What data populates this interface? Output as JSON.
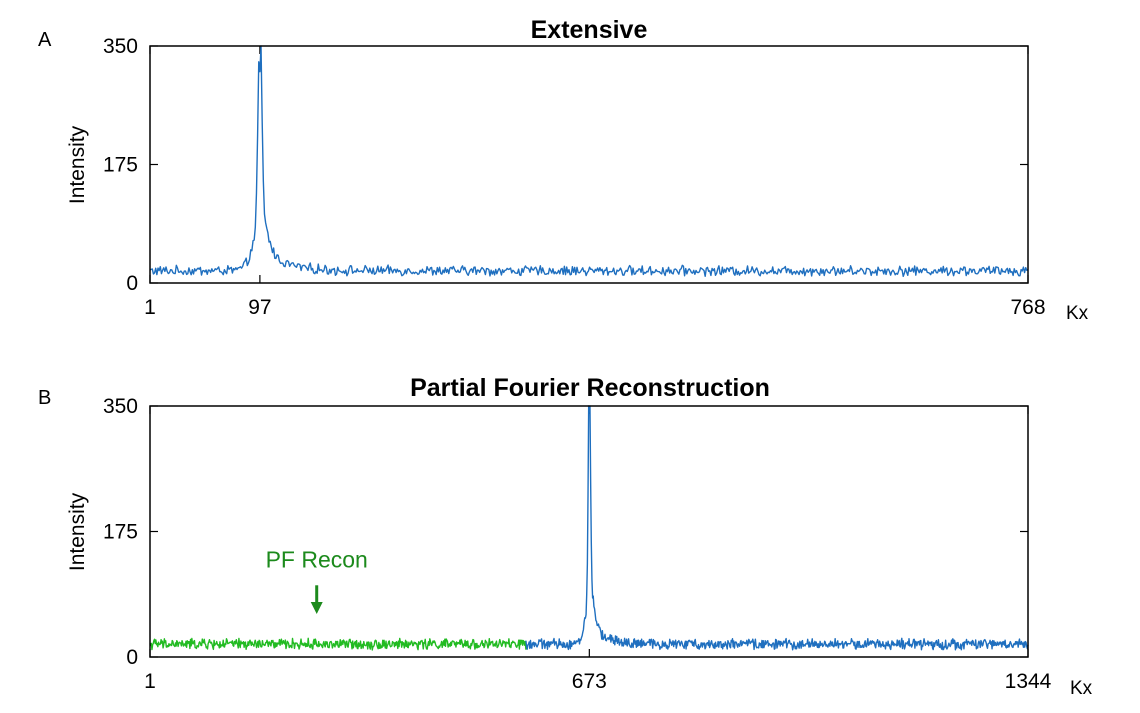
{
  "colors": {
    "blue_series": "#1f6fbf",
    "green_series": "#22bb22",
    "annotation": "#1c8a1c",
    "axis": "#000000"
  },
  "chart_data": [
    {
      "type": "line",
      "panel_letter": "A",
      "title": "Extensive",
      "ylabel": "Intensity",
      "xlabel": "Kx",
      "xlim": [
        1,
        768
      ],
      "ylim": [
        0,
        350
      ],
      "xticks": [
        {
          "value": 1,
          "label": "1"
        },
        {
          "value": 97,
          "label": "97"
        },
        {
          "value": 768,
          "label": "768"
        }
      ],
      "yticks": [
        {
          "value": 0,
          "label": "0"
        },
        {
          "value": 175,
          "label": "175"
        },
        {
          "value": 350,
          "label": "350"
        }
      ],
      "grid": false,
      "series": [
        {
          "color": "#1f6fbf",
          "x_range": [
            1,
            768
          ],
          "noise_base": 18,
          "noise_amplitude": 6,
          "peak": {
            "center": 97,
            "height": 312,
            "shoulder_height": 95,
            "tail_height": 40
          }
        }
      ]
    },
    {
      "type": "line",
      "panel_letter": "B",
      "title": "Partial Fourier Reconstruction",
      "ylabel": "Intensity",
      "xlabel": "Kx",
      "xlim": [
        1,
        1344
      ],
      "ylim": [
        0,
        350
      ],
      "xticks": [
        {
          "value": 1,
          "label": "1"
        },
        {
          "value": 673,
          "label": "673"
        },
        {
          "value": 1344,
          "label": "1344"
        }
      ],
      "yticks": [
        {
          "value": 0,
          "label": "0"
        },
        {
          "value": 175,
          "label": "175"
        },
        {
          "value": 350,
          "label": "350"
        }
      ],
      "grid": false,
      "series": [
        {
          "color": "#22bb22",
          "x_range": [
            1,
            576
          ],
          "noise_base": 18,
          "noise_amplitude": 6
        },
        {
          "color": "#1f6fbf",
          "x_range": [
            576,
            1344
          ],
          "noise_base": 18,
          "noise_amplitude": 6,
          "peak": {
            "center": 673,
            "height": 345,
            "shoulder_height": 95,
            "tail_height": 40
          }
        }
      ],
      "annotation": {
        "text": "PF Recon",
        "x": 256,
        "y_arrow_tip": 60,
        "y_arrow_tail": 100,
        "y_text": 125
      }
    }
  ]
}
